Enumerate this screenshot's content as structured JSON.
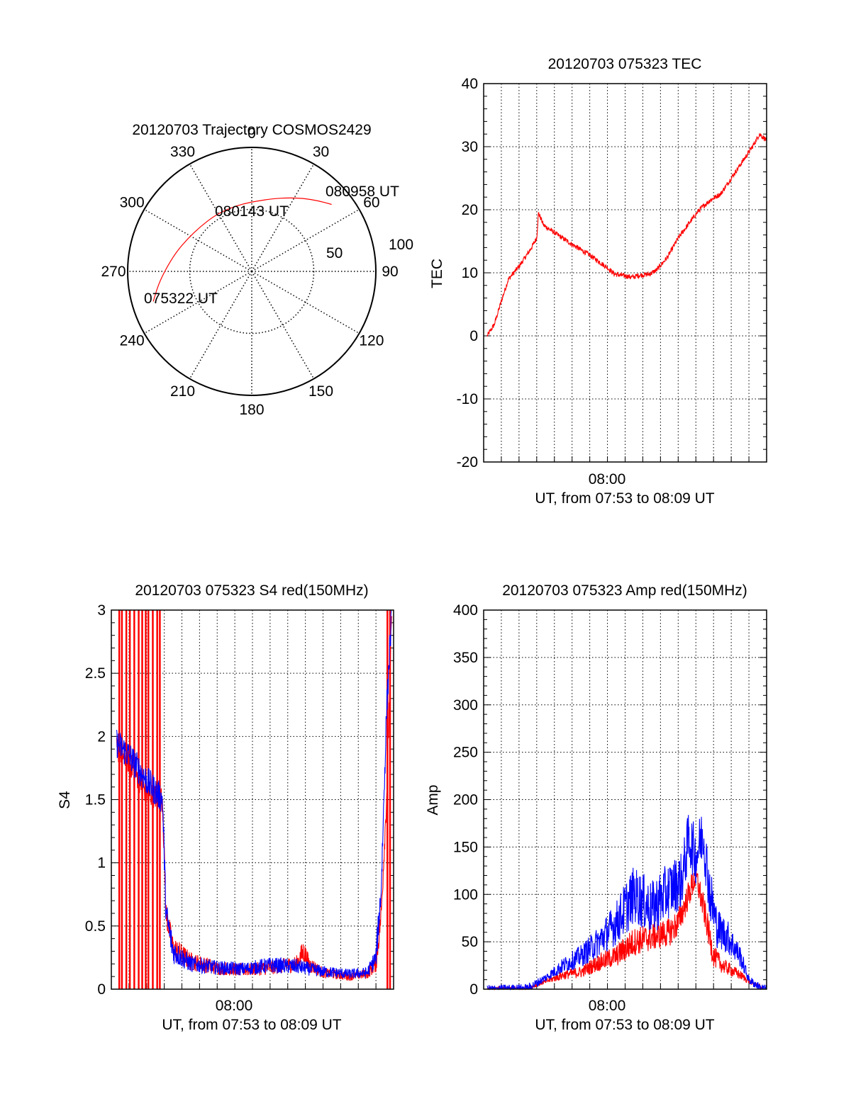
{
  "colors": {
    "red": "#ff0000",
    "blue": "#0000ff",
    "axis": "#000000",
    "grid": "#000000"
  },
  "chart_data": [
    {
      "type": "polar",
      "title": "20120703 Trajectory COSMOS2429",
      "angle_labels": [
        "0",
        "30",
        "60",
        "90",
        "120",
        "150",
        "180",
        "210",
        "240",
        "270",
        "300",
        "330"
      ],
      "radial_labels": [
        "50",
        "100"
      ],
      "annotations": [
        "075322 UT",
        "080143 UT",
        "080958 UT"
      ],
      "series": [
        {
          "color": "red",
          "points": [
            {
              "az": 253,
              "r": 83
            },
            {
              "az": 262,
              "r": 76
            },
            {
              "az": 272,
              "r": 69
            },
            {
              "az": 284,
              "r": 63
            },
            {
              "az": 297,
              "r": 58
            },
            {
              "az": 311,
              "r": 55
            },
            {
              "az": 326,
              "r": 54
            },
            {
              "az": 340,
              "r": 54
            },
            {
              "az": 353,
              "r": 55
            },
            {
              "az": 5,
              "r": 57
            },
            {
              "az": 16,
              "r": 61
            },
            {
              "az": 26,
              "r": 66
            },
            {
              "az": 35,
              "r": 72
            },
            {
              "az": 43,
              "r": 78
            },
            {
              "az": 50,
              "r": 84
            }
          ]
        }
      ]
    },
    {
      "type": "line",
      "title": "20120703 075323 TEC",
      "ylabel": "TEC",
      "xlabel": "UT, from 07:53 to 08:09 UT",
      "x_tick_label": "08:00",
      "y_tick_labels": [
        "-20",
        "-10",
        "0",
        "10",
        "20",
        "30",
        "40"
      ],
      "ylim": [
        -20,
        40
      ],
      "series": [
        {
          "color": "red",
          "noise": 0.4,
          "points": [
            [
              0.2,
              0
            ],
            [
              0.6,
              1.8
            ],
            [
              1.0,
              5.5
            ],
            [
              1.4,
              9
            ],
            [
              2.0,
              11
            ],
            [
              2.6,
              13.5
            ],
            [
              3.0,
              15.5
            ],
            [
              3.1,
              19.5
            ],
            [
              3.4,
              17.5
            ],
            [
              4.2,
              16
            ],
            [
              5.0,
              14.5
            ],
            [
              6.0,
              12.8
            ],
            [
              7.0,
              10.8
            ],
            [
              7.4,
              9.8
            ],
            [
              8.0,
              9.5
            ],
            [
              8.4,
              9.3
            ],
            [
              8.8,
              9.6
            ],
            [
              9.4,
              9.8
            ],
            [
              9.8,
              10.5
            ],
            [
              10.4,
              12.5
            ],
            [
              11.0,
              15.5
            ],
            [
              11.6,
              17.8
            ],
            [
              12.2,
              20
            ],
            [
              12.8,
              21.5
            ],
            [
              13.4,
              22.5
            ],
            [
              14.0,
              25
            ],
            [
              14.6,
              27.5
            ],
            [
              15.2,
              30
            ],
            [
              15.6,
              32
            ],
            [
              16.0,
              31
            ]
          ]
        }
      ]
    },
    {
      "type": "line",
      "title": "20120703 075323 S4 red(150MHz)",
      "ylabel": "S4",
      "xlabel": "UT, from 07:53 to 08:09 UT",
      "x_tick_label": "08:00",
      "y_tick_labels": [
        "0",
        "0.5",
        "1",
        "1.5",
        "2",
        "2.5",
        "3"
      ],
      "ylim": [
        0,
        3
      ],
      "red_spikes_x": [
        0.45,
        0.6,
        0.85,
        1.05,
        1.3,
        1.55,
        1.75,
        1.95,
        2.1,
        2.35,
        2.6,
        2.75,
        15.65,
        15.8
      ],
      "series": [
        {
          "name": "red",
          "color": "red",
          "noise": 0.1,
          "points": [
            [
              0.3,
              1.9
            ],
            [
              1.0,
              1.8
            ],
            [
              2.0,
              1.55
            ],
            [
              2.9,
              1.5
            ],
            [
              3.1,
              0.6
            ],
            [
              3.5,
              0.32
            ],
            [
              4.5,
              0.22
            ],
            [
              6.0,
              0.17
            ],
            [
              7.5,
              0.15
            ],
            [
              9.0,
              0.17
            ],
            [
              10.5,
              0.2
            ],
            [
              10.9,
              0.3
            ],
            [
              11.2,
              0.2
            ],
            [
              12.0,
              0.13
            ],
            [
              13.5,
              0.1
            ],
            [
              14.5,
              0.12
            ],
            [
              15.0,
              0.2
            ],
            [
              15.3,
              0.6
            ],
            [
              15.6,
              1.5
            ],
            [
              15.9,
              3.0
            ]
          ]
        },
        {
          "name": "blue",
          "color": "blue",
          "noise": 0.12,
          "points": [
            [
              0.3,
              1.95
            ],
            [
              1.0,
              1.85
            ],
            [
              2.0,
              1.65
            ],
            [
              2.9,
              1.5
            ],
            [
              3.1,
              0.6
            ],
            [
              3.5,
              0.3
            ],
            [
              4.5,
              0.2
            ],
            [
              6.0,
              0.17
            ],
            [
              7.5,
              0.16
            ],
            [
              9.0,
              0.19
            ],
            [
              10.5,
              0.18
            ],
            [
              12.0,
              0.14
            ],
            [
              13.5,
              0.12
            ],
            [
              14.5,
              0.13
            ],
            [
              15.0,
              0.25
            ],
            [
              15.3,
              0.8
            ],
            [
              15.6,
              2.2
            ],
            [
              15.9,
              3.0
            ]
          ]
        }
      ]
    },
    {
      "type": "line",
      "title": "20120703 075323 Amp red(150MHz)",
      "ylabel": "Amp",
      "xlabel": "UT, from 07:53 to 08:09 UT",
      "x_tick_label": "08:00",
      "y_tick_labels": [
        "0",
        "50",
        "100",
        "150",
        "200",
        "250",
        "300",
        "350",
        "400"
      ],
      "ylim": [
        0,
        400
      ],
      "series": [
        {
          "name": "red",
          "color": "red",
          "noise": 15,
          "points": [
            [
              0.2,
              0
            ],
            [
              2.5,
              1
            ],
            [
              3.5,
              8
            ],
            [
              4.5,
              15
            ],
            [
              5.5,
              18
            ],
            [
              6.5,
              28
            ],
            [
              7.5,
              35
            ],
            [
              8.5,
              50
            ],
            [
              9.5,
              55
            ],
            [
              10.5,
              60
            ],
            [
              11.0,
              70
            ],
            [
              11.5,
              95
            ],
            [
              12.0,
              120
            ],
            [
              12.5,
              80
            ],
            [
              13.0,
              35
            ],
            [
              13.5,
              25
            ],
            [
              14.5,
              15
            ],
            [
              15.2,
              6
            ],
            [
              15.8,
              1
            ]
          ]
        },
        {
          "name": "blue",
          "color": "blue",
          "noise": 30,
          "points": [
            [
              0.2,
              0
            ],
            [
              2.5,
              1
            ],
            [
              3.5,
              12
            ],
            [
              4.5,
              25
            ],
            [
              5.5,
              35
            ],
            [
              6.5,
              50
            ],
            [
              7.0,
              60
            ],
            [
              7.5,
              70
            ],
            [
              8.5,
              100
            ],
            [
              9.5,
              85
            ],
            [
              10.5,
              105
            ],
            [
              11.2,
              115
            ],
            [
              11.6,
              160
            ],
            [
              12.0,
              140
            ],
            [
              12.4,
              165
            ],
            [
              12.8,
              100
            ],
            [
              13.2,
              65
            ],
            [
              13.8,
              55
            ],
            [
              14.5,
              35
            ],
            [
              15.0,
              10
            ],
            [
              15.6,
              2
            ],
            [
              16.0,
              0
            ]
          ]
        }
      ]
    }
  ]
}
